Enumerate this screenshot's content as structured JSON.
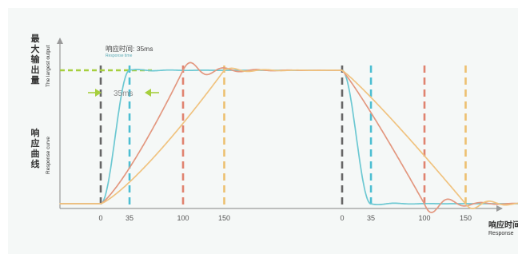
{
  "chart_data": {
    "type": "line",
    "title": "",
    "y_axis": {
      "label_cn": "最大输出量",
      "label_en": "The largest output",
      "curve_label_cn": "响应曲线",
      "curve_label_en": "Response curve"
    },
    "x_axis": {
      "label_cn": "响应时间",
      "label_en": "Response",
      "groups": [
        {
          "name": "rise",
          "ticks": [
            "0",
            "35",
            "100",
            "150"
          ]
        },
        {
          "name": "fall",
          "ticks": [
            "0",
            "35",
            "100",
            "150"
          ]
        }
      ]
    },
    "annotation": {
      "title_cn": "响应时间: 35ms",
      "title_en": "Response time",
      "interval_label": "35ms"
    },
    "markers": [
      {
        "tick": "0",
        "color": "#666666"
      },
      {
        "tick": "35",
        "color": "#4dbed2"
      },
      {
        "tick": "100",
        "color": "#e0836f"
      },
      {
        "tick": "150",
        "color": "#edc070"
      }
    ],
    "series": [
      {
        "response_time_ms": 35,
        "color": "#6cc8d2"
      },
      {
        "response_time_ms": 100,
        "color": "#e39880"
      },
      {
        "response_time_ms": 150,
        "color": "#f0c380"
      }
    ],
    "level_line_color": "#a6cf3e",
    "axis_color": "#9a9a9a",
    "grid": false
  }
}
